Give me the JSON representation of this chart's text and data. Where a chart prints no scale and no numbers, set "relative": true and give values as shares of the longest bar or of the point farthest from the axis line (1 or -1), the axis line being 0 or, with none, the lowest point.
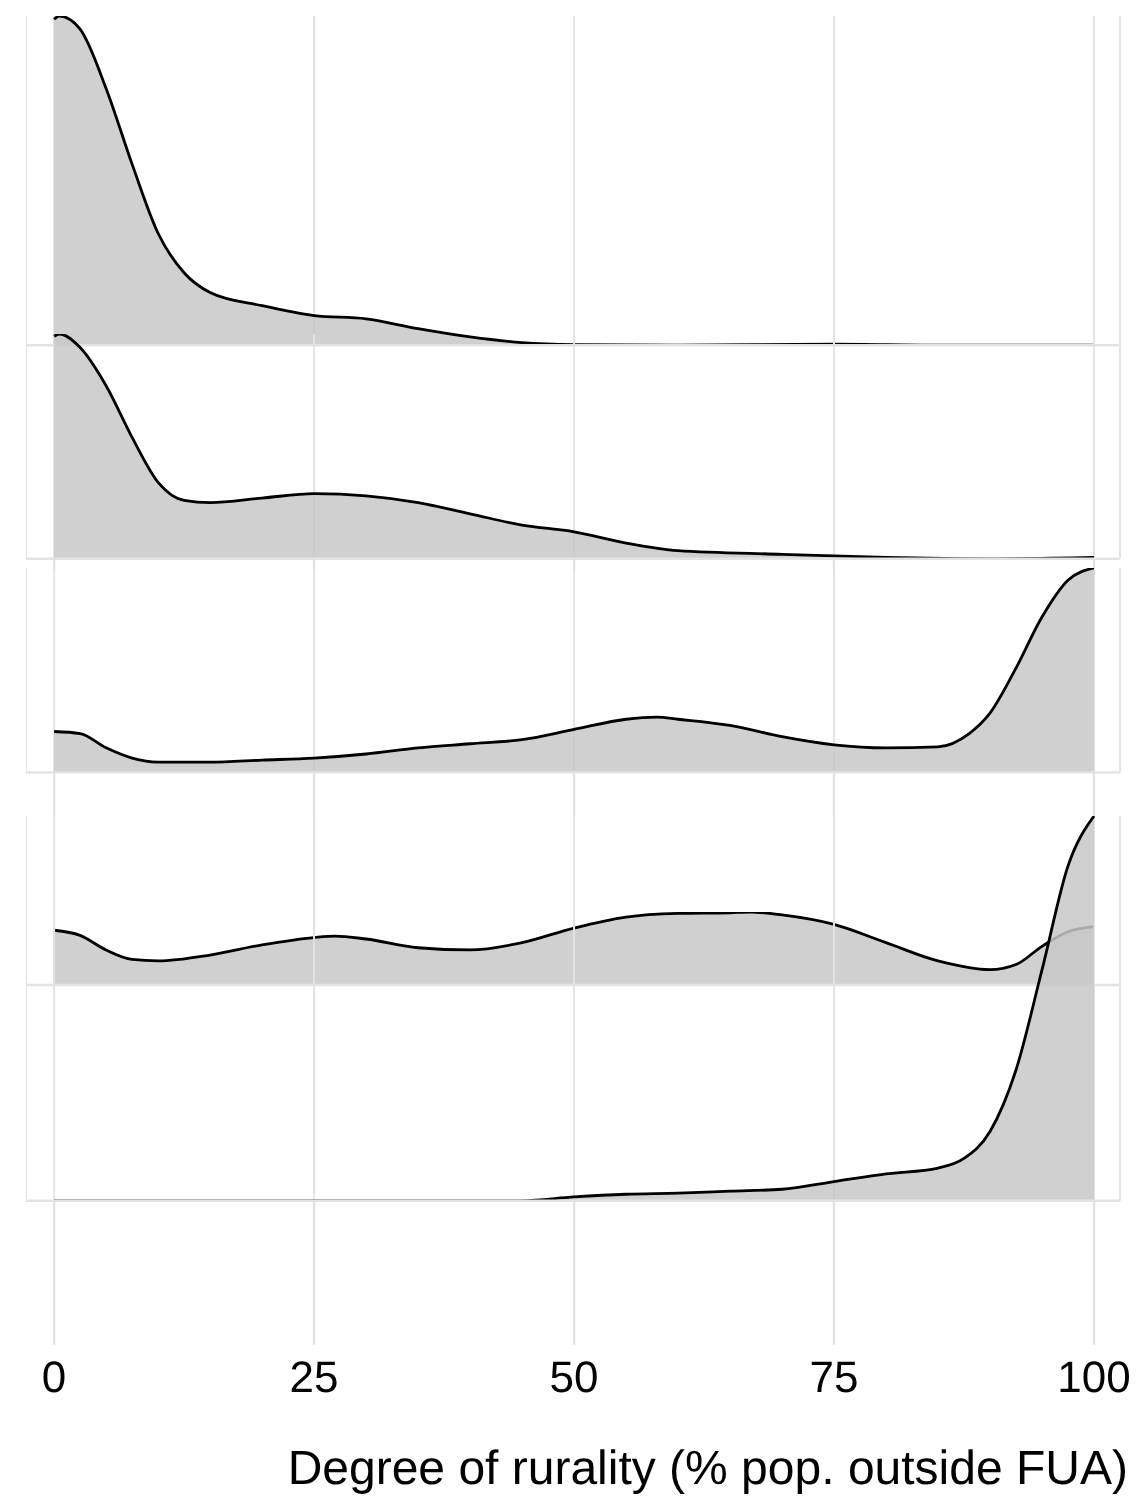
{
  "chart_data": [
    {
      "type": "area",
      "relative": true,
      "x": [
        0,
        0.5,
        2.5,
        5,
        7.5,
        10,
        12.5,
        15,
        20,
        25,
        30,
        35,
        40,
        45,
        50,
        60,
        75,
        85,
        100
      ],
      "values": [
        0.99,
        1,
        0.96,
        0.78,
        0.55,
        0.34,
        0.22,
        0.16,
        0.12,
        0.09,
        0.08,
        0.05,
        0.025,
        0.008,
        0.002,
        0,
        0.003,
        0,
        0
      ],
      "color": "#c8c8c8",
      "xlim": [
        -2.7,
        102.5
      ],
      "xticks": [
        0,
        25,
        50,
        75,
        100
      ],
      "grid": "x",
      "tick_labels": false
    },
    {
      "type": "area",
      "relative": true,
      "x": [
        0,
        0.5,
        2.5,
        5,
        7.5,
        10,
        12.5,
        15,
        20,
        25,
        30,
        35,
        40,
        45,
        50,
        55,
        60,
        70,
        80,
        90,
        100
      ],
      "values": [
        0.99,
        1,
        0.94,
        0.77,
        0.54,
        0.34,
        0.26,
        0.25,
        0.27,
        0.29,
        0.28,
        0.25,
        0.2,
        0.15,
        0.12,
        0.07,
        0.036,
        0.02,
        0.006,
        0,
        0.006
      ],
      "color": "#c8c8c8",
      "xlim": [
        -2.7,
        102.5
      ],
      "xticks": [
        0,
        25,
        50,
        75,
        100
      ],
      "grid": "x",
      "tick_labels": false
    },
    {
      "type": "area",
      "relative": true,
      "x": [
        0,
        2.5,
        5,
        7.5,
        10,
        15,
        20,
        25,
        30,
        35,
        40,
        45,
        50,
        55,
        58,
        60,
        65,
        70,
        75,
        80,
        85,
        88,
        90,
        92.5,
        95,
        97.5,
        100
      ],
      "values": [
        0.2,
        0.19,
        0.12,
        0.07,
        0.05,
        0.05,
        0.06,
        0.07,
        0.09,
        0.12,
        0.14,
        0.16,
        0.21,
        0.26,
        0.27,
        0.26,
        0.23,
        0.175,
        0.135,
        0.12,
        0.125,
        0.19,
        0.29,
        0.51,
        0.76,
        0.94,
        1
      ],
      "color": "#c8c8c8",
      "xlim": [
        -2.7,
        102.5
      ],
      "xticks": [
        0,
        25,
        50,
        75,
        100
      ],
      "grid": "x",
      "tick_labels": false
    },
    {
      "type": "area",
      "relative": true,
      "x": [
        0,
        2.5,
        5,
        7.5,
        10,
        15,
        20,
        25,
        27,
        30,
        35,
        40,
        45,
        50,
        55,
        60,
        65,
        67,
        70,
        75,
        80,
        85,
        90,
        92.5,
        95,
        97.5,
        100
      ],
      "values": [
        0.75,
        0.68,
        0.48,
        0.35,
        0.33,
        0.41,
        0.55,
        0.65,
        0.67,
        0.63,
        0.51,
        0.48,
        0.58,
        0.78,
        0.93,
        0.98,
        0.99,
        1,
        0.96,
        0.83,
        0.58,
        0.33,
        0.21,
        0.28,
        0.53,
        0.73,
        0.8
      ],
      "color": "#c8c8c8",
      "xlim": [
        -2.7,
        102.5
      ],
      "xticks": [
        0,
        25,
        50,
        75,
        100
      ],
      "grid": "x",
      "tick_labels": false
    },
    {
      "type": "area",
      "relative": true,
      "x": [
        0,
        10,
        20,
        30,
        40,
        45,
        50,
        55,
        60,
        65,
        70,
        75,
        80,
        85,
        87.5,
        90,
        92.5,
        95,
        97.5,
        100
      ],
      "values": [
        0,
        0,
        0,
        0,
        0,
        0,
        0.01,
        0.017,
        0.02,
        0.025,
        0.03,
        0.05,
        0.07,
        0.085,
        0.11,
        0.18,
        0.34,
        0.6,
        0.87,
        1
      ],
      "color": "#c8c8c8",
      "xlim": [
        -2.7,
        102.5
      ],
      "xticks": [
        0,
        25,
        50,
        75,
        100
      ],
      "grid": "x",
      "tick_labels": "x",
      "xlabel": "Degree of rurality (% pop. outside FUA)"
    }
  ]
}
